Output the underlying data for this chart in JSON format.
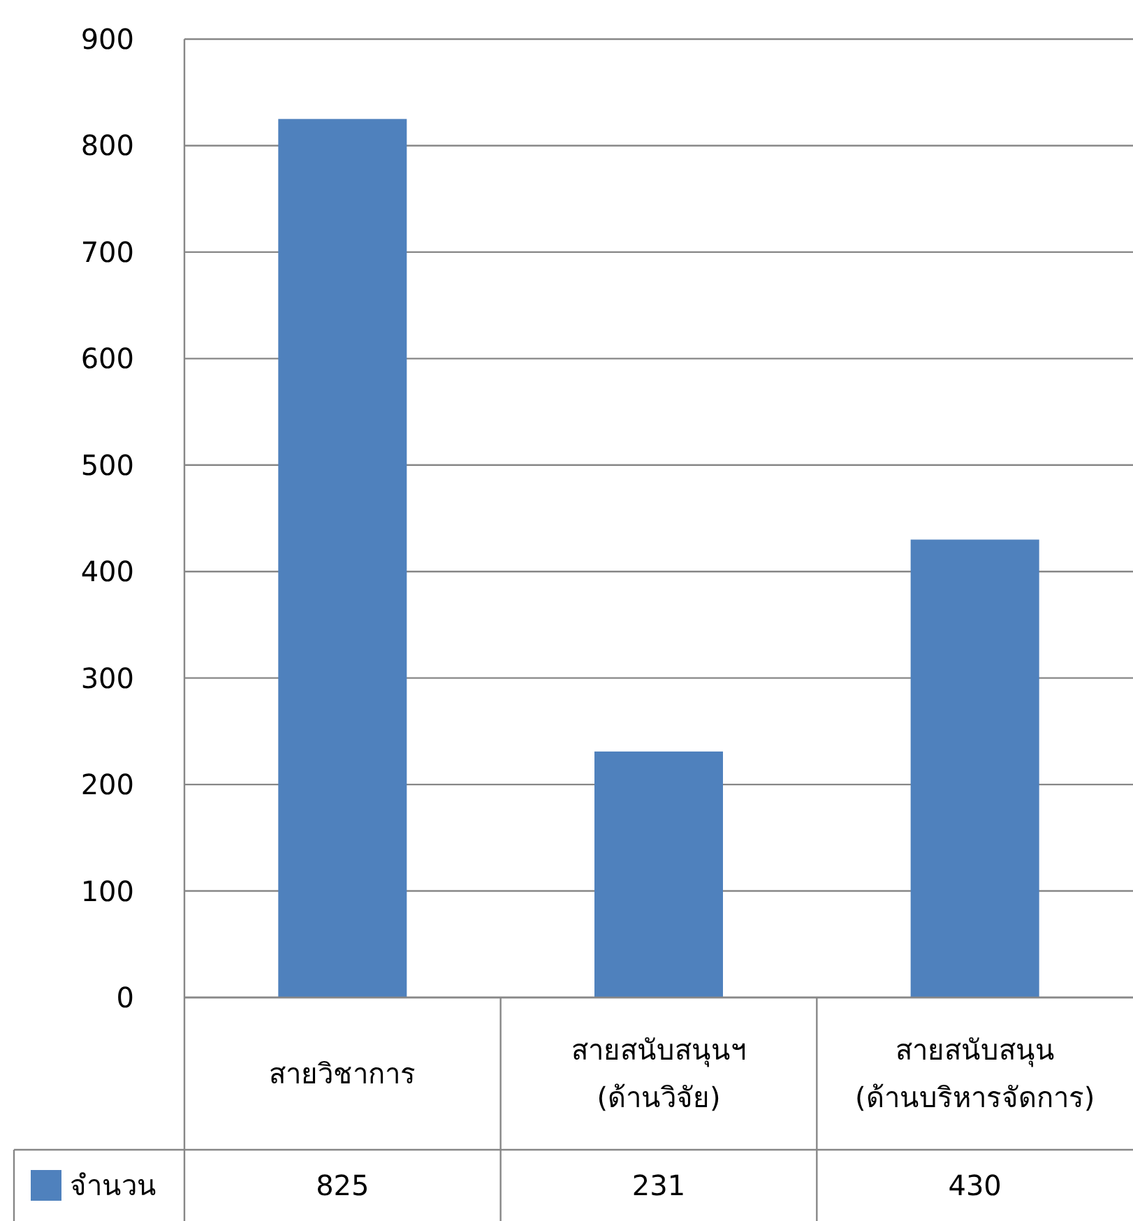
{
  "chart_data": {
    "type": "bar",
    "categories": [
      "สายวิชาการ",
      "สายสนับสนุนฯ (ด้านวิจัย)",
      "สายสนับสนุน (ด้านบริหารจัดการ)"
    ],
    "series": [
      {
        "name": "จำนวน",
        "color": "#4f81bd",
        "values": [
          825,
          231,
          430
        ]
      }
    ],
    "ylim": [
      0,
      900
    ],
    "yticks": [
      0,
      100,
      200,
      300,
      400,
      500,
      600,
      700,
      800,
      900
    ],
    "grid": "y",
    "data_labels": true,
    "legend": "bottom left"
  }
}
